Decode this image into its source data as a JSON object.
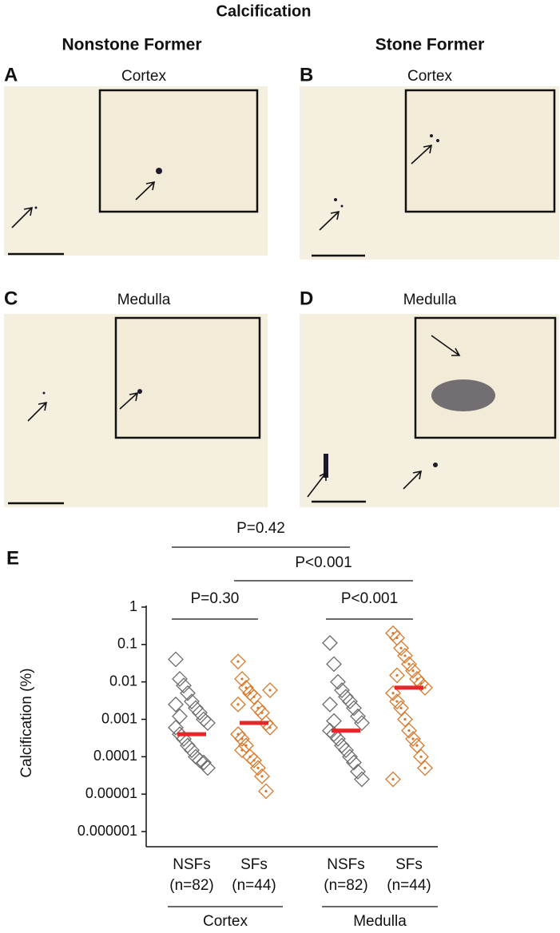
{
  "figure": {
    "title": "Calcification",
    "columns": [
      "Nonstone Former",
      "Stone Former"
    ],
    "panels": [
      {
        "label": "A",
        "caption": "Cortex"
      },
      {
        "label": "B",
        "caption": "Cortex"
      },
      {
        "label": "C",
        "caption": "Medulla"
      },
      {
        "label": "D",
        "caption": "Medulla"
      }
    ]
  },
  "chart_data": {
    "type": "strip",
    "panel_label": "E",
    "y_label": "Calcification (%)",
    "yscale": "log",
    "ylim": [
      1e-06,
      1
    ],
    "yticks": [
      1e-06,
      1e-05,
      0.0001,
      0.001,
      0.01,
      0.1,
      1
    ],
    "categories": [
      "NSFs",
      "SFs",
      "NSFs",
      "SFs"
    ],
    "n_labels": [
      "(n=82)",
      "(n=44)",
      "(n=82)",
      "(n=44)"
    ],
    "groups": [
      {
        "label": "Cortex",
        "members": [
          0,
          1
        ]
      },
      {
        "label": "Medulla",
        "members": [
          2,
          3
        ]
      }
    ],
    "median_color": "#e8262a",
    "series": [
      {
        "color": "#6b6b6b",
        "marker_dot": false,
        "median": 0.0004,
        "values": [
          0.04,
          0.012,
          0.008,
          0.005,
          0.003,
          0.002,
          0.0015,
          0.001,
          0.0008,
          0.0006,
          0.0004,
          0.0003,
          0.0002,
          0.00015,
          0.0001,
          8e-05,
          7e-05,
          5e-05,
          0.0025,
          0.0012
        ]
      },
      {
        "color": "#d9782a",
        "marker_dot": true,
        "median": 0.0008,
        "values": [
          0.035,
          0.012,
          0.007,
          0.005,
          0.004,
          0.002,
          0.0015,
          0.0008,
          0.0006,
          0.0004,
          0.0003,
          0.0002,
          0.0001,
          8e-05,
          5e-05,
          3e-05,
          1.2e-05,
          0.006,
          0.0025,
          0.00015
        ]
      },
      {
        "color": "#6b6b6b",
        "marker_dot": false,
        "median": 0.0005,
        "values": [
          0.11,
          0.03,
          0.01,
          0.006,
          0.004,
          0.003,
          0.002,
          0.0012,
          0.0008,
          0.0005,
          0.0004,
          0.0003,
          0.0002,
          0.00015,
          0.0001,
          7e-05,
          4e-05,
          2.5e-05,
          0.0025,
          0.0009
        ]
      },
      {
        "color": "#d9782a",
        "marker_dot": true,
        "median": 0.007,
        "values": [
          0.2,
          0.15,
          0.08,
          0.05,
          0.03,
          0.02,
          0.012,
          0.009,
          0.007,
          0.005,
          0.003,
          0.002,
          0.001,
          0.0005,
          0.0003,
          0.0002,
          0.0001,
          5e-05,
          2.5e-05,
          0.015
        ]
      }
    ],
    "comparisons": [
      {
        "label": "P=0.42",
        "from": 0,
        "to": 2
      },
      {
        "label": "P<0.001",
        "from": 1,
        "to": 3
      },
      {
        "label": "P=0.30",
        "from": 0,
        "to": 1
      },
      {
        "label": "P<0.001",
        "from": 2,
        "to": 3
      }
    ]
  }
}
